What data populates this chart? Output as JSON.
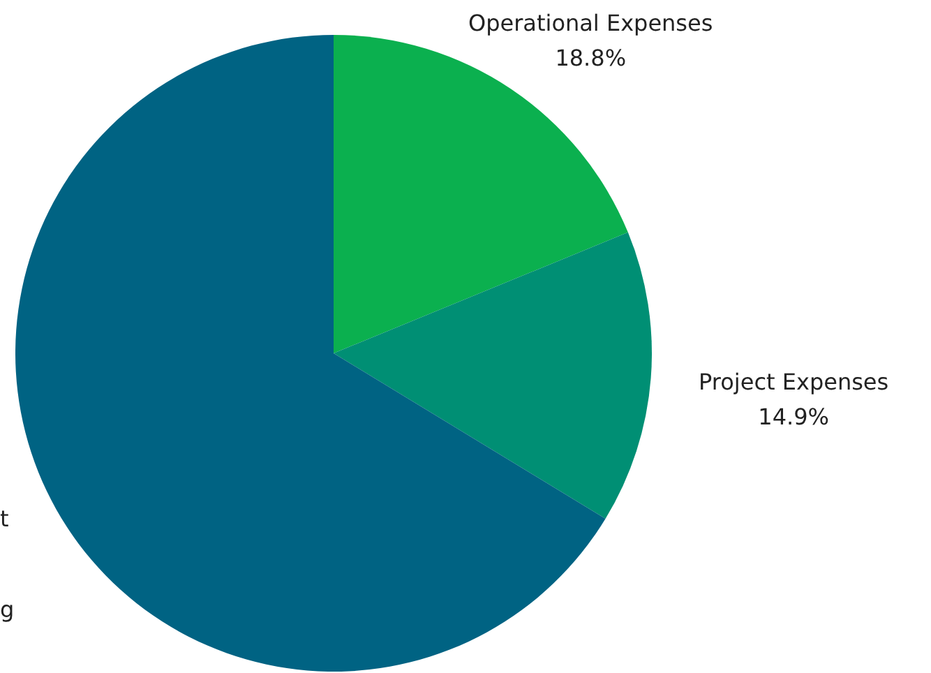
{
  "chart_data": {
    "type": "pie",
    "categories": [
      "Operational Expenses",
      "Project Expenses",
      null
    ],
    "values": [
      18.8,
      14.9,
      66.3
    ],
    "colors": [
      "#0bb04f",
      "#008f74",
      "#006383"
    ],
    "value_labels": [
      "18.8%",
      "14.9%",
      null
    ],
    "annotations": [
      "t",
      "g"
    ]
  }
}
